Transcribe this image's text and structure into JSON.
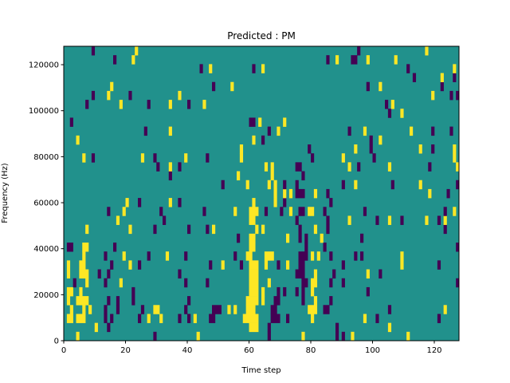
{
  "chart_data": {
    "type": "heatmap",
    "title": "Predicted : PM",
    "xlabel": "Time step",
    "ylabel": "Frequency (Hz)",
    "xlim": [
      0,
      128
    ],
    "ylim": [
      0,
      128000
    ],
    "n_time_steps": 128,
    "n_freq_bins": 33,
    "xticks": [
      0,
      20,
      40,
      60,
      80,
      100,
      120
    ],
    "xtick_labels": [
      "0",
      "20",
      "40",
      "60",
      "80",
      "100",
      "120"
    ],
    "yticks": [
      0,
      20000,
      40000,
      60000,
      80000,
      100000,
      120000
    ],
    "ytick_labels": [
      "0",
      "20000",
      "40000",
      "60000",
      "80000",
      "100000",
      "120000"
    ],
    "grid": false,
    "colormap": {
      "0": "#440154",
      "1": "#21918c",
      "2": "#fde725"
    },
    "background_value": 1,
    "cells_format": "[time_start, time_end, freq_bin, value]",
    "cells": [
      [
        4,
        4,
        0,
        2
      ],
      [
        29,
        29,
        0,
        0
      ],
      [
        43,
        43,
        0,
        2
      ],
      [
        66,
        66,
        0,
        0
      ],
      [
        77,
        77,
        0,
        2
      ],
      [
        88,
        88,
        0,
        0
      ],
      [
        90,
        90,
        0,
        0
      ],
      [
        93,
        93,
        0,
        2
      ],
      [
        111,
        111,
        0,
        2
      ],
      [
        10,
        10,
        1,
        2
      ],
      [
        14,
        14,
        1,
        0
      ],
      [
        60,
        62,
        1,
        2
      ],
      [
        66,
        66,
        1,
        0
      ],
      [
        88,
        88,
        1,
        0
      ],
      [
        105,
        105,
        1,
        2
      ],
      [
        1,
        2,
        2,
        2
      ],
      [
        4,
        6,
        2,
        2
      ],
      [
        13,
        13,
        2,
        0
      ],
      [
        15,
        15,
        2,
        0
      ],
      [
        24,
        24,
        2,
        0
      ],
      [
        27,
        27,
        2,
        2
      ],
      [
        31,
        31,
        2,
        2
      ],
      [
        37,
        37,
        2,
        0
      ],
      [
        40,
        40,
        2,
        0
      ],
      [
        42,
        42,
        2,
        2
      ],
      [
        47,
        48,
        2,
        0
      ],
      [
        58,
        62,
        2,
        2
      ],
      [
        67,
        69,
        2,
        0
      ],
      [
        72,
        72,
        2,
        0
      ],
      [
        80,
        80,
        2,
        2
      ],
      [
        97,
        97,
        2,
        2
      ],
      [
        101,
        101,
        2,
        0
      ],
      [
        121,
        121,
        2,
        0
      ],
      [
        2,
        2,
        3,
        2
      ],
      [
        6,
        6,
        3,
        2
      ],
      [
        8,
        8,
        3,
        2
      ],
      [
        13,
        13,
        3,
        0
      ],
      [
        17,
        17,
        3,
        0
      ],
      [
        25,
        25,
        3,
        0
      ],
      [
        29,
        30,
        3,
        2
      ],
      [
        39,
        39,
        3,
        0
      ],
      [
        48,
        50,
        3,
        0
      ],
      [
        53,
        53,
        3,
        2
      ],
      [
        55,
        55,
        3,
        2
      ],
      [
        59,
        61,
        3,
        2
      ],
      [
        67,
        68,
        3,
        0
      ],
      [
        79,
        81,
        3,
        2
      ],
      [
        84,
        85,
        3,
        0
      ],
      [
        105,
        105,
        3,
        0
      ],
      [
        123,
        123,
        3,
        2
      ],
      [
        1,
        1,
        4,
        2
      ],
      [
        4,
        7,
        4,
        2
      ],
      [
        14,
        14,
        4,
        0
      ],
      [
        17,
        17,
        4,
        0
      ],
      [
        22,
        22,
        4,
        0
      ],
      [
        40,
        40,
        4,
        0
      ],
      [
        59,
        62,
        4,
        2
      ],
      [
        64,
        64,
        4,
        2
      ],
      [
        68,
        69,
        4,
        0
      ],
      [
        77,
        77,
        4,
        0
      ],
      [
        81,
        81,
        4,
        2
      ],
      [
        86,
        86,
        4,
        0
      ],
      [
        1,
        2,
        5,
        2
      ],
      [
        5,
        5,
        5,
        2
      ],
      [
        22,
        22,
        5,
        0
      ],
      [
        60,
        62,
        5,
        2
      ],
      [
        64,
        64,
        5,
        2
      ],
      [
        69,
        69,
        5,
        0
      ],
      [
        71,
        71,
        5,
        0
      ],
      [
        75,
        75,
        5,
        0
      ],
      [
        77,
        77,
        5,
        0
      ],
      [
        80,
        80,
        5,
        2
      ],
      [
        98,
        98,
        5,
        0
      ],
      [
        3,
        3,
        6,
        0
      ],
      [
        7,
        7,
        6,
        2
      ],
      [
        13,
        13,
        6,
        0
      ],
      [
        18,
        18,
        6,
        2
      ],
      [
        39,
        39,
        6,
        0
      ],
      [
        46,
        46,
        6,
        0
      ],
      [
        60,
        62,
        6,
        2
      ],
      [
        66,
        66,
        6,
        2
      ],
      [
        77,
        78,
        6,
        0
      ],
      [
        80,
        81,
        6,
        2
      ],
      [
        86,
        86,
        6,
        0
      ],
      [
        90,
        90,
        6,
        0
      ],
      [
        127,
        127,
        6,
        0
      ],
      [
        1,
        1,
        7,
        2
      ],
      [
        5,
        7,
        7,
        2
      ],
      [
        11,
        11,
        7,
        0
      ],
      [
        14,
        14,
        7,
        0
      ],
      [
        37,
        37,
        7,
        0
      ],
      [
        60,
        62,
        7,
        2
      ],
      [
        75,
        77,
        7,
        0
      ],
      [
        81,
        81,
        7,
        2
      ],
      [
        87,
        87,
        7,
        0
      ],
      [
        98,
        98,
        7,
        2
      ],
      [
        102,
        102,
        7,
        0
      ],
      [
        1,
        1,
        8,
        2
      ],
      [
        5,
        6,
        8,
        2
      ],
      [
        15,
        15,
        8,
        0
      ],
      [
        21,
        21,
        8,
        2
      ],
      [
        24,
        24,
        8,
        0
      ],
      [
        47,
        47,
        8,
        0
      ],
      [
        51,
        51,
        8,
        2
      ],
      [
        57,
        57,
        8,
        0
      ],
      [
        60,
        62,
        8,
        2
      ],
      [
        65,
        65,
        8,
        2
      ],
      [
        69,
        69,
        8,
        0
      ],
      [
        72,
        72,
        8,
        2
      ],
      [
        76,
        77,
        8,
        0
      ],
      [
        90,
        90,
        8,
        0
      ],
      [
        109,
        109,
        8,
        2
      ],
      [
        121,
        121,
        8,
        0
      ],
      [
        6,
        6,
        9,
        2
      ],
      [
        13,
        13,
        9,
        0
      ],
      [
        19,
        19,
        9,
        2
      ],
      [
        27,
        27,
        9,
        0
      ],
      [
        33,
        33,
        9,
        2
      ],
      [
        39,
        39,
        9,
        0
      ],
      [
        55,
        55,
        9,
        0
      ],
      [
        59,
        60,
        9,
        2
      ],
      [
        65,
        67,
        9,
        2
      ],
      [
        76,
        78,
        9,
        0
      ],
      [
        80,
        80,
        9,
        2
      ],
      [
        82,
        82,
        9,
        2
      ],
      [
        86,
        86,
        9,
        0
      ],
      [
        94,
        94,
        9,
        0
      ],
      [
        96,
        96,
        9,
        0
      ],
      [
        109,
        109,
        9,
        2
      ],
      [
        1,
        2,
        10,
        0
      ],
      [
        6,
        7,
        10,
        2
      ],
      [
        16,
        16,
        10,
        0
      ],
      [
        60,
        61,
        10,
        2
      ],
      [
        78,
        78,
        10,
        0
      ],
      [
        84,
        84,
        10,
        0
      ],
      [
        127,
        127,
        10,
        0
      ],
      [
        56,
        56,
        11,
        0
      ],
      [
        60,
        61,
        11,
        2
      ],
      [
        72,
        72,
        11,
        2
      ],
      [
        76,
        76,
        11,
        0
      ],
      [
        78,
        78,
        11,
        0
      ],
      [
        83,
        83,
        11,
        2
      ],
      [
        96,
        96,
        11,
        0
      ],
      [
        7,
        7,
        12,
        2
      ],
      [
        21,
        21,
        12,
        2
      ],
      [
        29,
        29,
        12,
        0
      ],
      [
        40,
        40,
        12,
        0
      ],
      [
        46,
        46,
        12,
        0
      ],
      [
        48,
        48,
        12,
        2
      ],
      [
        62,
        62,
        12,
        2
      ],
      [
        64,
        64,
        12,
        2
      ],
      [
        76,
        76,
        12,
        0
      ],
      [
        81,
        81,
        12,
        2
      ],
      [
        85,
        85,
        12,
        0
      ],
      [
        123,
        123,
        12,
        0
      ],
      [
        17,
        17,
        13,
        2
      ],
      [
        32,
        32,
        13,
        0
      ],
      [
        60,
        61,
        13,
        2
      ],
      [
        75,
        75,
        13,
        0
      ],
      [
        85,
        85,
        13,
        0
      ],
      [
        92,
        92,
        13,
        2
      ],
      [
        101,
        101,
        13,
        0
      ],
      [
        105,
        105,
        13,
        2
      ],
      [
        109,
        109,
        13,
        0
      ],
      [
        117,
        117,
        13,
        2
      ],
      [
        121,
        121,
        13,
        0
      ],
      [
        123,
        123,
        13,
        2
      ],
      [
        14,
        14,
        14,
        0
      ],
      [
        19,
        19,
        14,
        2
      ],
      [
        31,
        31,
        14,
        0
      ],
      [
        45,
        45,
        14,
        0
      ],
      [
        55,
        55,
        14,
        2
      ],
      [
        60,
        62,
        14,
        2
      ],
      [
        65,
        65,
        14,
        0
      ],
      [
        70,
        70,
        14,
        0
      ],
      [
        73,
        73,
        14,
        2
      ],
      [
        76,
        77,
        14,
        0
      ],
      [
        79,
        80,
        14,
        2
      ],
      [
        84,
        84,
        14,
        0
      ],
      [
        97,
        97,
        14,
        0
      ],
      [
        123,
        123,
        14,
        0
      ],
      [
        126,
        126,
        14,
        2
      ],
      [
        20,
        20,
        15,
        2
      ],
      [
        24,
        24,
        15,
        0
      ],
      [
        34,
        34,
        15,
        2
      ],
      [
        37,
        37,
        15,
        0
      ],
      [
        61,
        61,
        15,
        2
      ],
      [
        68,
        68,
        15,
        2
      ],
      [
        71,
        71,
        15,
        0
      ],
      [
        86,
        86,
        15,
        0
      ],
      [
        68,
        68,
        16,
        2
      ],
      [
        71,
        71,
        16,
        2
      ],
      [
        73,
        73,
        16,
        2
      ],
      [
        75,
        77,
        16,
        0
      ],
      [
        81,
        81,
        16,
        2
      ],
      [
        85,
        85,
        16,
        0
      ],
      [
        118,
        118,
        16,
        2
      ],
      [
        124,
        124,
        16,
        0
      ],
      [
        51,
        51,
        17,
        0
      ],
      [
        59,
        59,
        17,
        2
      ],
      [
        66,
        66,
        17,
        2
      ],
      [
        68,
        68,
        17,
        2
      ],
      [
        71,
        71,
        17,
        0
      ],
      [
        75,
        75,
        17,
        0
      ],
      [
        90,
        90,
        17,
        0
      ],
      [
        94,
        94,
        17,
        2
      ],
      [
        106,
        106,
        17,
        0
      ],
      [
        115,
        115,
        17,
        2
      ],
      [
        127,
        127,
        17,
        0
      ],
      [
        34,
        34,
        18,
        0
      ],
      [
        56,
        56,
        18,
        2
      ],
      [
        67,
        67,
        18,
        2
      ],
      [
        77,
        77,
        18,
        0
      ],
      [
        30,
        30,
        19,
        0
      ],
      [
        34,
        34,
        19,
        2
      ],
      [
        37,
        37,
        19,
        0
      ],
      [
        65,
        65,
        19,
        2
      ],
      [
        67,
        67,
        19,
        2
      ],
      [
        75,
        76,
        19,
        0
      ],
      [
        92,
        92,
        19,
        2
      ],
      [
        95,
        95,
        19,
        0
      ],
      [
        105,
        105,
        19,
        2
      ],
      [
        118,
        118,
        19,
        0
      ],
      [
        127,
        127,
        19,
        2
      ],
      [
        6,
        6,
        20,
        2
      ],
      [
        9,
        9,
        20,
        0
      ],
      [
        25,
        25,
        20,
        2
      ],
      [
        29,
        29,
        20,
        0
      ],
      [
        39,
        39,
        20,
        2
      ],
      [
        46,
        46,
        20,
        0
      ],
      [
        57,
        57,
        20,
        2
      ],
      [
        80,
        80,
        20,
        0
      ],
      [
        90,
        90,
        20,
        2
      ],
      [
        100,
        100,
        20,
        0
      ],
      [
        126,
        126,
        20,
        2
      ],
      [
        57,
        57,
        21,
        2
      ],
      [
        79,
        79,
        21,
        0
      ],
      [
        94,
        94,
        21,
        2
      ],
      [
        99,
        99,
        21,
        0
      ],
      [
        115,
        115,
        21,
        2
      ],
      [
        119,
        119,
        21,
        0
      ],
      [
        126,
        126,
        21,
        2
      ],
      [
        4,
        4,
        22,
        2
      ],
      [
        61,
        61,
        22,
        2
      ],
      [
        64,
        64,
        22,
        0
      ],
      [
        99,
        99,
        22,
        0
      ],
      [
        102,
        102,
        22,
        2
      ],
      [
        26,
        26,
        23,
        0
      ],
      [
        34,
        34,
        23,
        2
      ],
      [
        66,
        66,
        23,
        0
      ],
      [
        69,
        69,
        23,
        2
      ],
      [
        92,
        92,
        23,
        0
      ],
      [
        97,
        97,
        23,
        2
      ],
      [
        112,
        112,
        23,
        2
      ],
      [
        119,
        119,
        23,
        0
      ],
      [
        125,
        125,
        23,
        0
      ],
      [
        2,
        2,
        24,
        0
      ],
      [
        60,
        61,
        24,
        0
      ],
      [
        63,
        63,
        24,
        2
      ],
      [
        71,
        71,
        24,
        2
      ],
      [
        105,
        105,
        25,
        0
      ],
      [
        109,
        109,
        25,
        2
      ],
      [
        7,
        7,
        26,
        0
      ],
      [
        18,
        18,
        26,
        2
      ],
      [
        27,
        27,
        26,
        0
      ],
      [
        34,
        34,
        26,
        2
      ],
      [
        40,
        40,
        26,
        0
      ],
      [
        45,
        45,
        26,
        2
      ],
      [
        104,
        104,
        26,
        0
      ],
      [
        106,
        106,
        26,
        2
      ],
      [
        9,
        9,
        27,
        0
      ],
      [
        14,
        14,
        27,
        2
      ],
      [
        21,
        21,
        27,
        0
      ],
      [
        37,
        37,
        27,
        2
      ],
      [
        119,
        119,
        27,
        2
      ],
      [
        125,
        125,
        27,
        0
      ],
      [
        127,
        127,
        27,
        0
      ],
      [
        15,
        15,
        28,
        2
      ],
      [
        48,
        48,
        28,
        0
      ],
      [
        54,
        54,
        28,
        2
      ],
      [
        98,
        98,
        28,
        0
      ],
      [
        102,
        102,
        28,
        2
      ],
      [
        122,
        122,
        28,
        0
      ],
      [
        113,
        113,
        29,
        0
      ],
      [
        122,
        122,
        29,
        2
      ],
      [
        126,
        126,
        29,
        0
      ],
      [
        44,
        44,
        30,
        0
      ],
      [
        47,
        47,
        30,
        2
      ],
      [
        61,
        61,
        30,
        0
      ],
      [
        64,
        64,
        30,
        2
      ],
      [
        111,
        111,
        30,
        0
      ],
      [
        126,
        126,
        30,
        2
      ],
      [
        16,
        16,
        31,
        0
      ],
      [
        22,
        22,
        31,
        2
      ],
      [
        85,
        85,
        31,
        0
      ],
      [
        88,
        88,
        31,
        2
      ],
      [
        93,
        94,
        31,
        0
      ],
      [
        98,
        98,
        31,
        2
      ],
      [
        107,
        107,
        31,
        2
      ],
      [
        9,
        9,
        32,
        0
      ],
      [
        23,
        23,
        32,
        2
      ],
      [
        95,
        95,
        32,
        0
      ],
      [
        117,
        117,
        32,
        2
      ]
    ]
  }
}
